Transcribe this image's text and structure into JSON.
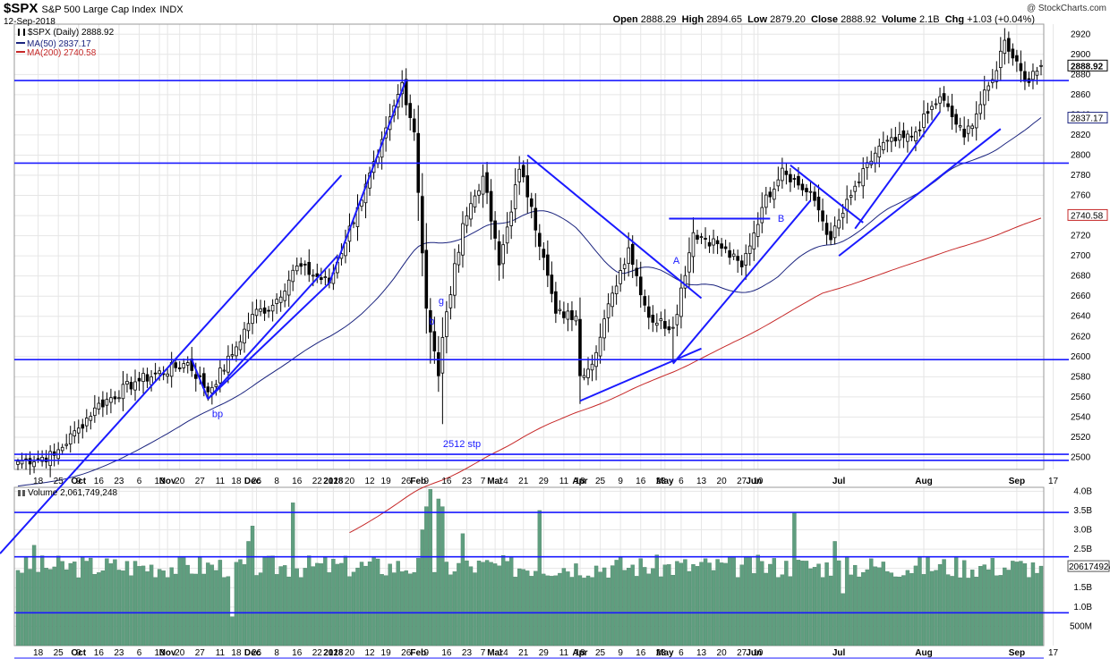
{
  "header": {
    "symbol": "$SPX",
    "name": "S&P 500 Large Cap Index",
    "exchange": "INDX",
    "date": "12-Sep-2018",
    "credit": "@ StockCharts.com",
    "quote": {
      "open_label": "Open",
      "open": "2888.29",
      "high_label": "High",
      "high": "2894.65",
      "low_label": "Low",
      "low": "2879.20",
      "close_label": "Close",
      "close": "2888.92",
      "volume_label": "Volume",
      "volume": "2.1B",
      "chg_label": "Chg",
      "chg": "+1.03 (+0.04%)"
    }
  },
  "legend": {
    "price": "$SPX (Daily) 2888.92",
    "ma50": "MA(50) 2837.17",
    "ma200": "MA(200) 2740.58",
    "volume": "Volume 2,061,749,248"
  },
  "colors": {
    "candle": "#000000",
    "ma50": "#1a237e",
    "ma200": "#c62828",
    "trendline": "#1a1aff",
    "volume_bar": "#5f9e7f",
    "grid": "#e6e6e6"
  },
  "chart_data": {
    "type": "candlestick",
    "price_axis": {
      "ticks": [
        "2500",
        "2520",
        "2540",
        "2560",
        "2580",
        "2600",
        "2620",
        "2640",
        "2660",
        "2680",
        "2700",
        "2720",
        "2740",
        "2760",
        "2780",
        "2800",
        "2820",
        "2840",
        "2860",
        "2880",
        "2900",
        "2920"
      ],
      "min": 2488,
      "max": 2930,
      "last_price_label": "2888.92",
      "ma50_label": "2837.17",
      "ma200_label": "2740.58"
    },
    "volume_axis": {
      "ticks": [
        "500M",
        "1.0B",
        "1.5B",
        "2.0B",
        "2.5B",
        "3.0B",
        "3.5B",
        "4.0B"
      ],
      "tick_values": [
        0.5,
        1.0,
        1.5,
        2.0,
        2.5,
        3.0,
        3.5,
        4.0
      ],
      "min": 0,
      "max": 4.1,
      "last_volume_label": "2061749248"
    },
    "x_axis_labels": [
      "18",
      "25",
      "Oct",
      "9",
      "16",
      "23",
      "Nov",
      "6",
      "13",
      "20",
      "27",
      "Dec",
      "11",
      "18",
      "26",
      "2018",
      "8",
      "16",
      "22",
      "Feb",
      "12",
      "20",
      "Mar",
      "12",
      "19",
      "26",
      "Apr",
      "9",
      "16",
      "23",
      "May",
      "7",
      "14",
      "21",
      "29",
      "Jun",
      "11",
      "18",
      "25",
      "Jul",
      "9",
      "16",
      "23",
      "Aug",
      "6",
      "13",
      "20",
      "27",
      "Sep",
      "10",
      "17"
    ],
    "close_anchors": [
      [
        "2017-09-11",
        2496
      ],
      [
        "2017-09-22",
        2502
      ],
      [
        "2017-10-02",
        2529
      ],
      [
        "2017-10-06",
        2549
      ],
      [
        "2017-10-20",
        2575
      ],
      [
        "2017-11-08",
        2594
      ],
      [
        "2017-11-15",
        2565
      ],
      [
        "2017-11-24",
        2602
      ],
      [
        "2017-12-01",
        2642
      ],
      [
        "2017-12-08",
        2651
      ],
      [
        "2017-12-18",
        2690
      ],
      [
        "2017-12-29",
        2673
      ],
      [
        "2018-01-10",
        2748
      ],
      [
        "2018-01-18",
        2798
      ],
      [
        "2018-01-26",
        2872
      ],
      [
        "2018-01-31",
        2823
      ],
      [
        "2018-02-05",
        2648
      ],
      [
        "2018-02-08",
        2581
      ],
      [
        "2018-02-09",
        2619
      ],
      [
        "2018-02-16",
        2732
      ],
      [
        "2018-02-26",
        2779
      ],
      [
        "2018-03-02",
        2691
      ],
      [
        "2018-03-09",
        2786
      ],
      [
        "2018-03-14",
        2749
      ],
      [
        "2018-03-22",
        2643
      ],
      [
        "2018-03-29",
        2640
      ],
      [
        "2018-04-02",
        2581
      ],
      [
        "2018-04-06",
        2604
      ],
      [
        "2018-04-12",
        2663
      ],
      [
        "2018-04-18",
        2708
      ],
      [
        "2018-04-25",
        2639
      ],
      [
        "2018-05-03",
        2629
      ],
      [
        "2018-05-10",
        2723
      ],
      [
        "2018-05-18",
        2712
      ],
      [
        "2018-05-29",
        2689
      ],
      [
        "2018-06-05",
        2748
      ],
      [
        "2018-06-12",
        2787
      ],
      [
        "2018-06-22",
        2755
      ],
      [
        "2018-06-28",
        2716
      ],
      [
        "2018-07-06",
        2760
      ],
      [
        "2018-07-17",
        2809
      ],
      [
        "2018-07-27",
        2818
      ],
      [
        "2018-08-07",
        2858
      ],
      [
        "2018-08-15",
        2818
      ],
      [
        "2018-08-24",
        2875
      ],
      [
        "2018-08-29",
        2914
      ],
      [
        "2018-09-07",
        2872
      ],
      [
        "2018-09-12",
        2888.92
      ]
    ],
    "support_resistance_levels": [
      2497,
      2503,
      2597,
      2792,
      2874
    ],
    "volume_levels_bn": [
      0.85,
      2.3,
      3.45
    ],
    "annotations": [
      "bp",
      "b",
      "g",
      "A",
      "B",
      "2512 stp"
    ]
  }
}
